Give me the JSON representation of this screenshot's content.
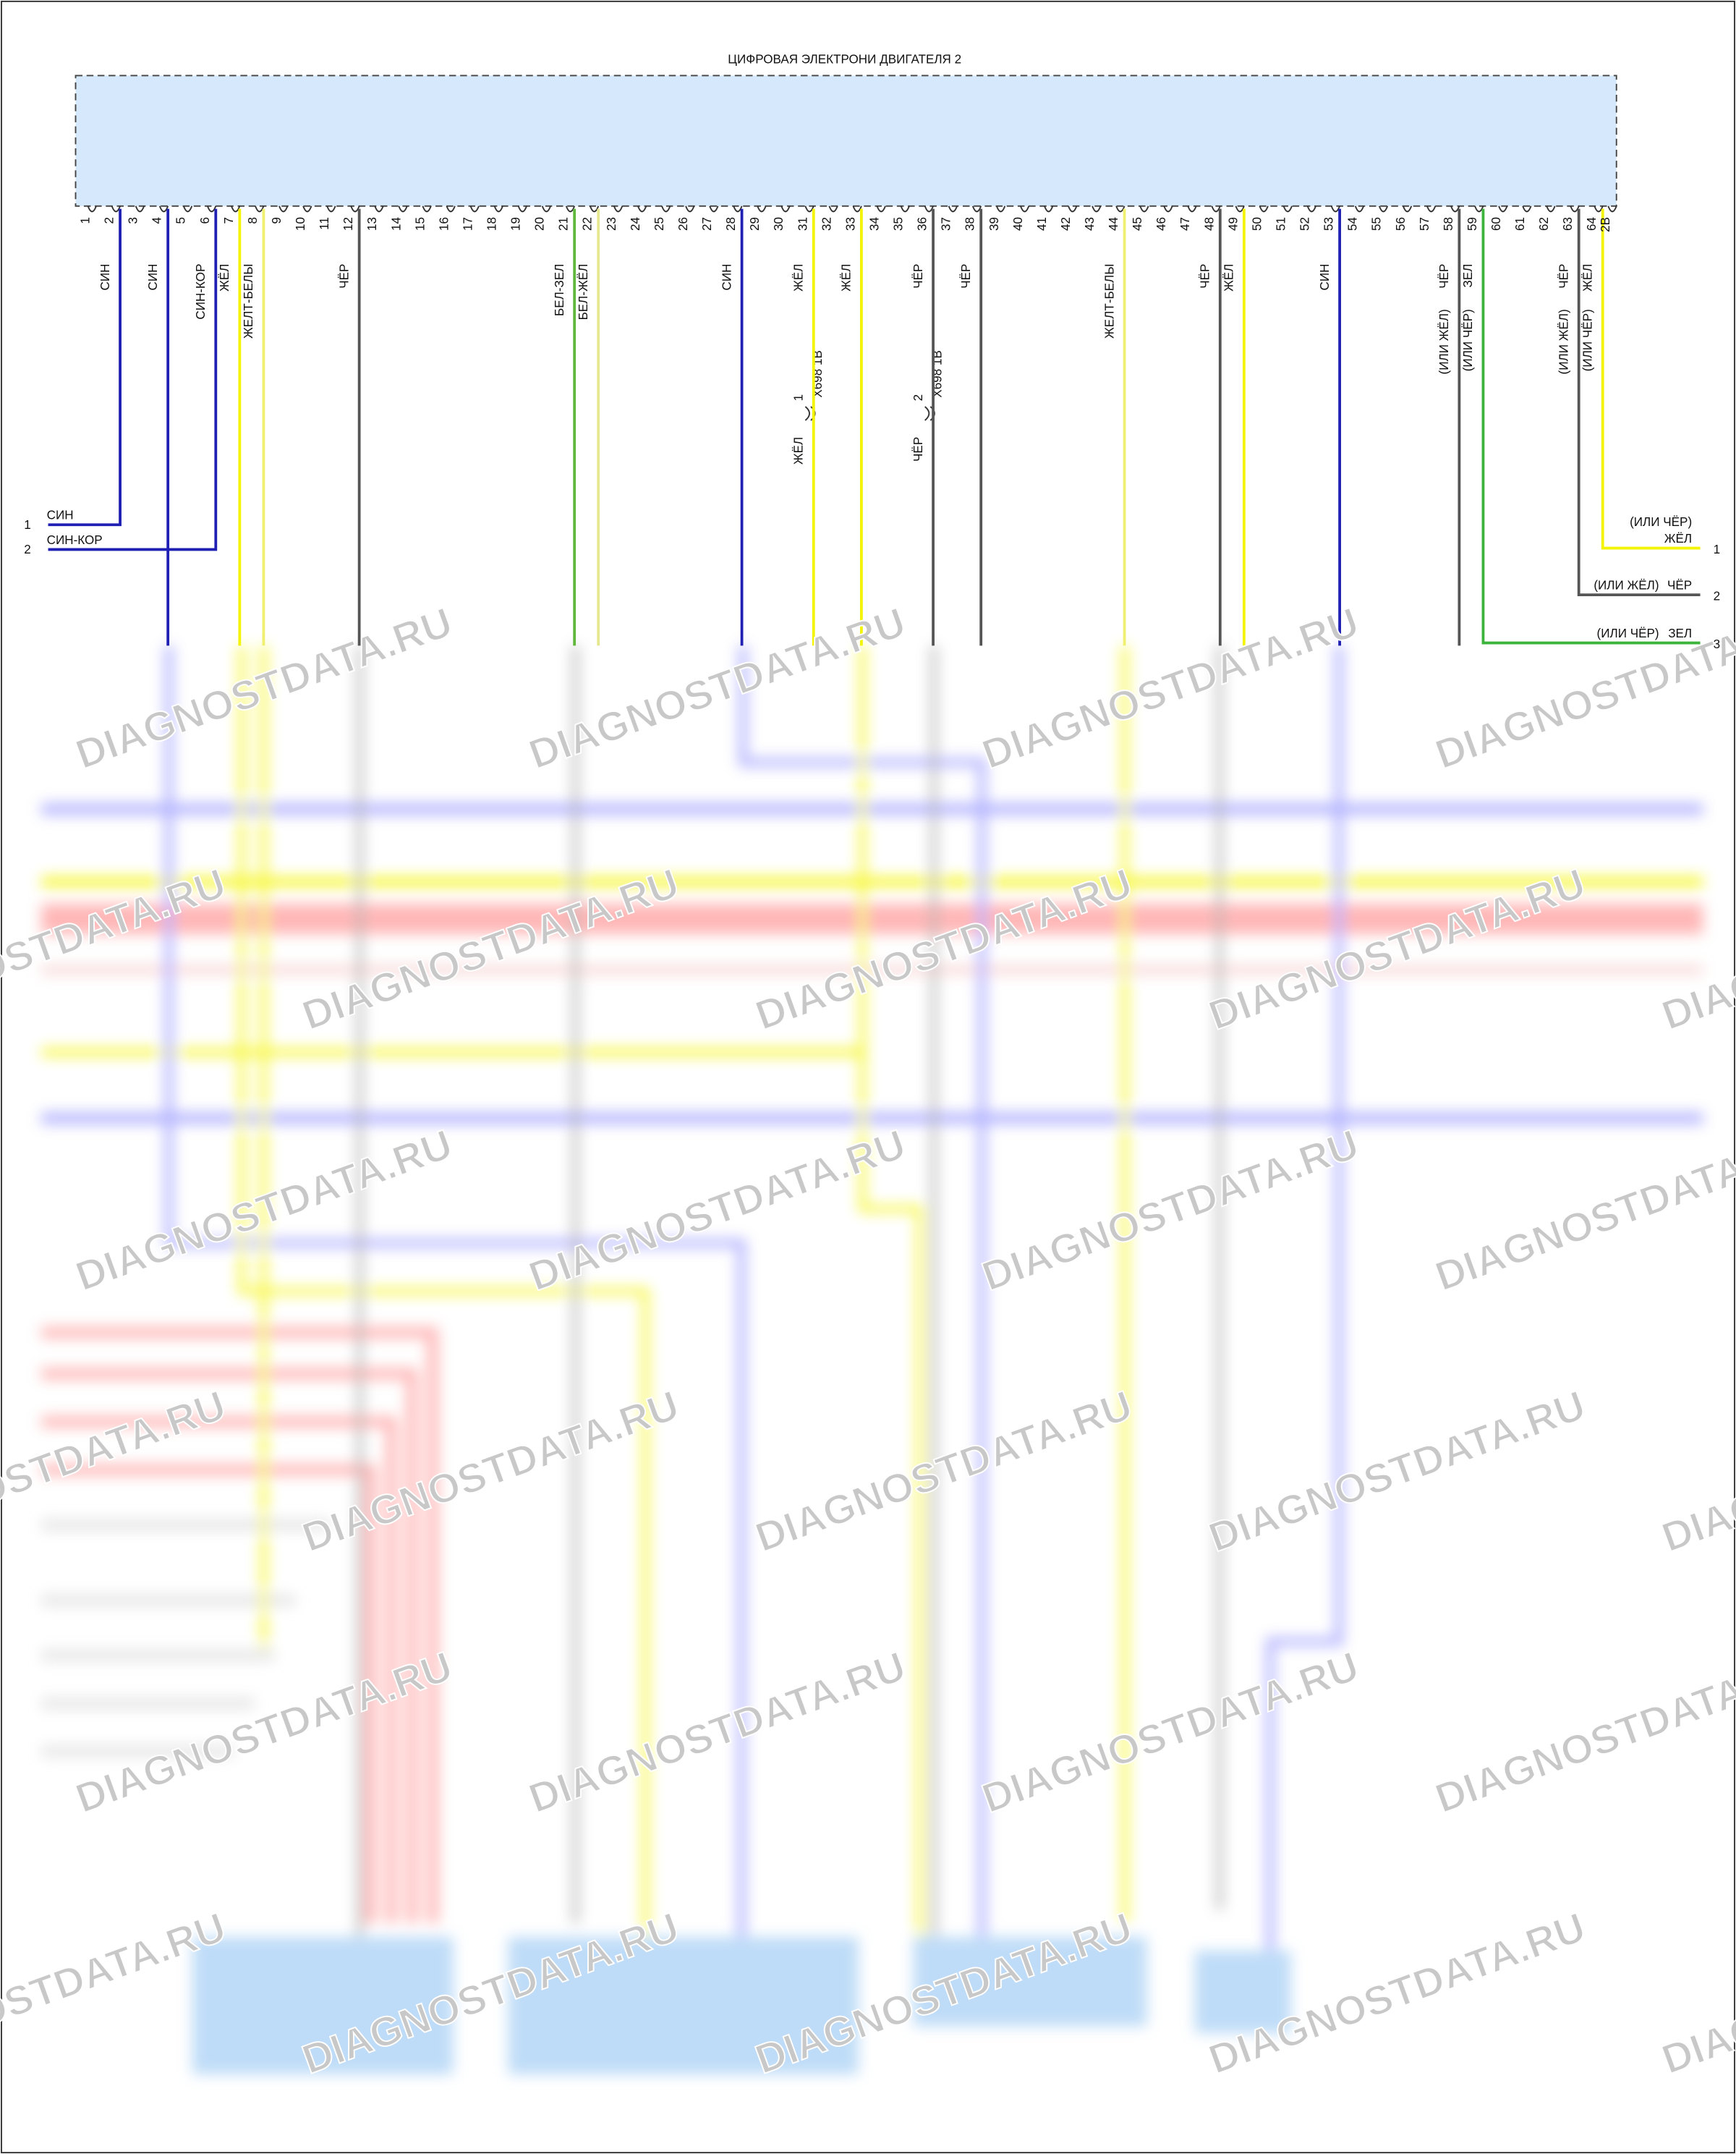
{
  "module": {
    "title": "ЦИФРОВАЯ ЭЛЕКТРОНИ ДВИГАТЕЛЯ 2"
  },
  "pins": [
    {
      "label": "1"
    },
    {
      "label": "2",
      "wire": {
        "label": "СИН",
        "color": "#1f1fb4",
        "to_left": {
          "pin": "1",
          "label": "СИН"
        }
      }
    },
    {
      "label": "3"
    },
    {
      "label": "4",
      "wire": {
        "label": "СИН",
        "color": "#1f1fb4"
      }
    },
    {
      "label": "5"
    },
    {
      "label": "6",
      "wire": {
        "label": "СИН-КОР",
        "color": "#1f1fb4",
        "to_left": {
          "pin": "2",
          "label": "СИН-КОР"
        }
      }
    },
    {
      "label": "7",
      "wire": {
        "label": "ЖЁЛ",
        "color": "#f4f400"
      }
    },
    {
      "label": "8",
      "wire": {
        "label": "ЖЕЛТ-БЕЛЫ",
        "color": "#f0f070"
      }
    },
    {
      "label": "9"
    },
    {
      "label": "10"
    },
    {
      "label": "11"
    },
    {
      "label": "12",
      "wire": {
        "label": "ЧЁР",
        "color": "#555555"
      }
    },
    {
      "label": "13"
    },
    {
      "label": "14"
    },
    {
      "label": "15"
    },
    {
      "label": "16"
    },
    {
      "label": "17"
    },
    {
      "label": "18"
    },
    {
      "label": "19"
    },
    {
      "label": "20"
    },
    {
      "label": "21",
      "wire": {
        "label": "БЕЛ-ЗЕЛ",
        "color": "#5fb83c"
      }
    },
    {
      "label": "22",
      "wire": {
        "label": "БЕЛ-ЖЁЛ",
        "color": "#e6e890"
      }
    },
    {
      "label": "23"
    },
    {
      "label": "24"
    },
    {
      "label": "25"
    },
    {
      "label": "26"
    },
    {
      "label": "27"
    },
    {
      "label": "28",
      "wire": {
        "label": "СИН",
        "color": "#1f1fb4"
      }
    },
    {
      "label": "29"
    },
    {
      "label": "30"
    },
    {
      "label": "31",
      "wire": {
        "label": "ЖЁЛ",
        "color": "#f4f400",
        "connector": {
          "name": "X698 1B",
          "pin": "1",
          "label": "ЖЁЛ"
        }
      }
    },
    {
      "label": "32"
    },
    {
      "label": "33",
      "wire": {
        "label": "ЖЁЛ",
        "color": "#f4f400"
      }
    },
    {
      "label": "34"
    },
    {
      "label": "35"
    },
    {
      "label": "36",
      "wire": {
        "label": "ЧЁР",
        "color": "#555555",
        "connector": {
          "name": "X698 1B",
          "pin": "2",
          "label": "ЧЁР"
        }
      }
    },
    {
      "label": "37"
    },
    {
      "label": "38",
      "wire": {
        "label": "ЧЁР",
        "color": "#555555"
      }
    },
    {
      "label": "39"
    },
    {
      "label": "40"
    },
    {
      "label": "41"
    },
    {
      "label": "42"
    },
    {
      "label": "43"
    },
    {
      "label": "44",
      "wire": {
        "label": "ЖЕЛТ-БЕЛЫ",
        "color": "#f0f070"
      }
    },
    {
      "label": "45"
    },
    {
      "label": "46"
    },
    {
      "label": "47"
    },
    {
      "label": "48",
      "wire": {
        "label": "ЧЁР",
        "color": "#555555"
      }
    },
    {
      "label": "49",
      "wire": {
        "label": "ЖЁЛ",
        "color": "#f4f400"
      }
    },
    {
      "label": "50"
    },
    {
      "label": "51"
    },
    {
      "label": "52"
    },
    {
      "label": "53",
      "wire": {
        "label": "СИН",
        "color": "#1f1fb4"
      }
    },
    {
      "label": "54"
    },
    {
      "label": "55"
    },
    {
      "label": "56"
    },
    {
      "label": "57"
    },
    {
      "label": "58",
      "wire": {
        "label": "ЧЁР",
        "alt": "(ИЛИ ЖЁЛ)",
        "color": "#555555"
      }
    },
    {
      "label": "59",
      "wire": {
        "label": "ЗЕЛ",
        "alt": "(ИЛИ ЧЁР)",
        "color": "#3cb43c",
        "to_right": {
          "pin": "3",
          "label": "ЗЕЛ",
          "alt": "(ИЛИ ЧЁР)"
        }
      }
    },
    {
      "label": "60"
    },
    {
      "label": "61"
    },
    {
      "label": "62"
    },
    {
      "label": "63",
      "wire": {
        "label": "ЧЁР",
        "alt": "(ИЛИ ЖЁЛ)",
        "color": "#555555",
        "to_right": {
          "pin": "2",
          "label": "ЧЁР",
          "alt": "(ИЛИ ЖЁЛ)"
        }
      }
    },
    {
      "label": "64",
      "wire": {
        "label": "ЖЁЛ",
        "alt": "(ИЛИ ЧЁР)",
        "color": "#f4f400",
        "to_right": {
          "pin": "1",
          "label": "ЖЁЛ",
          "alt": "(ИЛИ ЧЁР)"
        }
      }
    },
    {
      "label": "2B"
    }
  ],
  "watermark": "DIAGNOSTDATA.RU"
}
